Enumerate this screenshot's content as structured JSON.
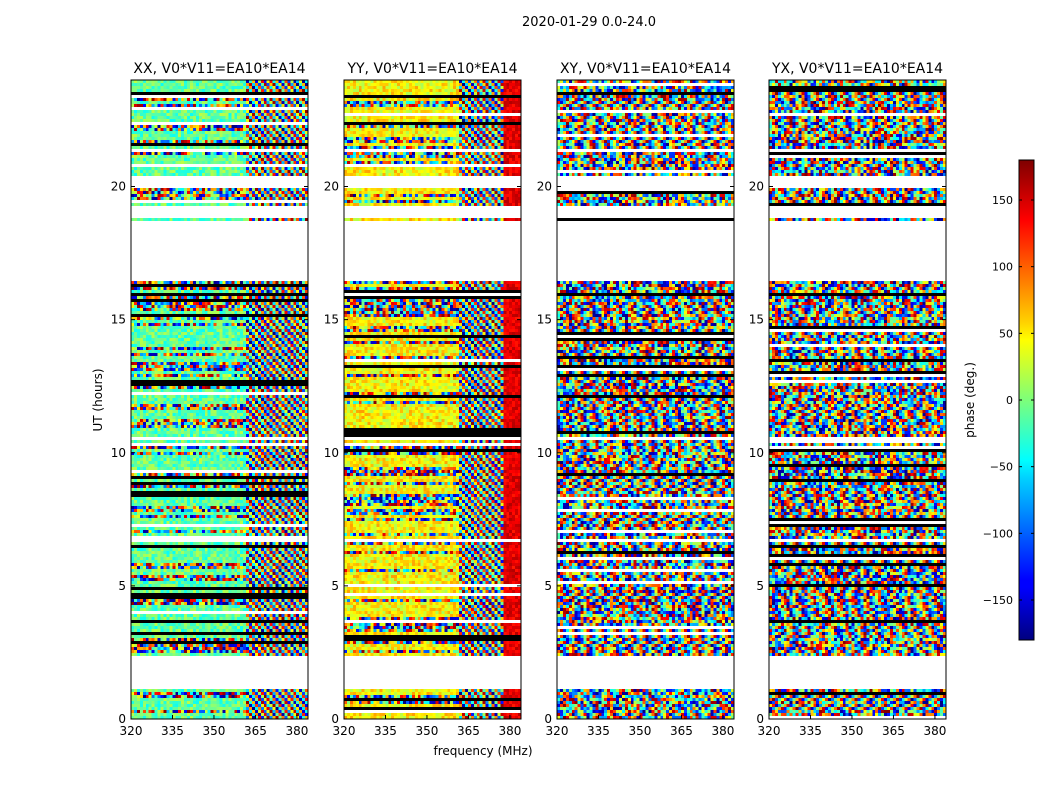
{
  "chart_data": {
    "type": "heatmap",
    "title": "2020-01-29 0.0-24.0",
    "xlabel": "frequency (MHz)",
    "ylabel": "UT (hours)",
    "xlim": [
      320,
      384
    ],
    "ylim": [
      0,
      24
    ],
    "x_ticks": [
      320,
      335,
      350,
      365,
      380
    ],
    "y_ticks": [
      0,
      5,
      10,
      15,
      20
    ],
    "panels": [
      {
        "title": "XX, V0*V11=EA10*EA14",
        "pol": "XX"
      },
      {
        "title": "YY, V0*V11=EA10*EA14",
        "pol": "YY"
      },
      {
        "title": "XY, V0*V11=EA10*EA14",
        "pol": "XY"
      },
      {
        "title": "YX, V0*V11=EA10*EA14",
        "pol": "YX"
      }
    ],
    "colorbar": {
      "label": "phase (deg.)",
      "range": [
        -180,
        180
      ],
      "ticks": [
        -150,
        -100,
        -50,
        0,
        50,
        100,
        150
      ],
      "tick_labels": [
        "−150",
        "−100",
        "−50",
        "0",
        "50",
        "100",
        "150"
      ],
      "colormap": "jet"
    },
    "flagged_ut_ranges": [
      [
        1.15,
        1.55
      ],
      [
        1.6,
        2.35
      ],
      [
        6.6,
        6.75
      ],
      [
        10.45,
        10.55
      ],
      [
        16.5,
        18.75
      ],
      [
        18.8,
        19.25
      ],
      [
        19.95,
        20.4
      ],
      [
        20.5,
        20.55
      ],
      [
        21.3,
        21.4
      ]
    ]
  }
}
